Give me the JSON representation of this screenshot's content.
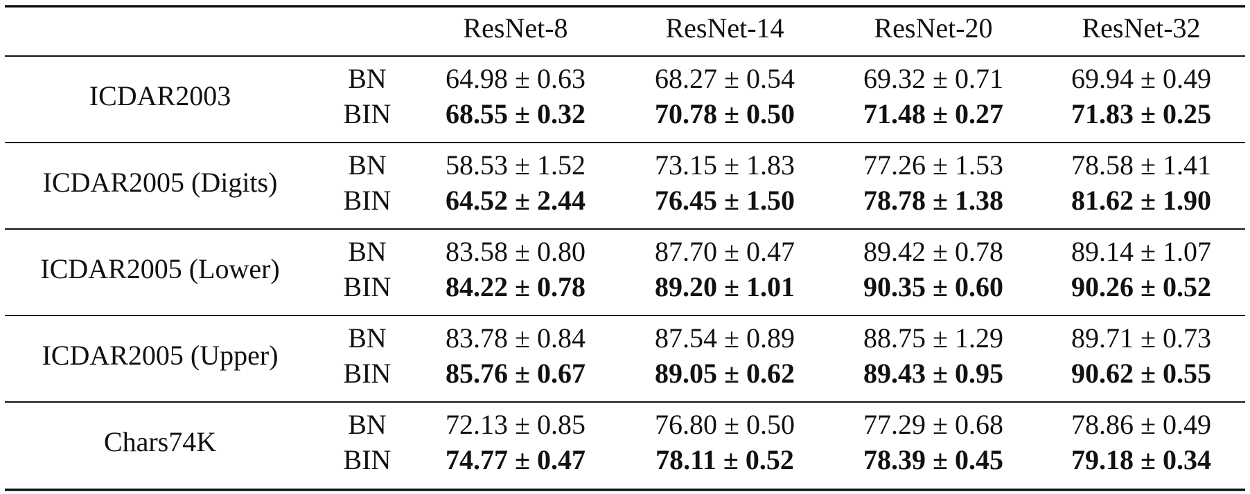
{
  "table": {
    "header": [
      "ResNet-8",
      "ResNet-14",
      "ResNet-20",
      "ResNet-32"
    ],
    "row_groups": [
      {
        "dataset": "ICDAR2003",
        "rows": [
          {
            "method": "BN",
            "values": [
              "64.98 ± 0.63",
              "68.27 ± 0.54",
              "69.32 ± 0.71",
              "69.94 ± 0.49"
            ]
          },
          {
            "method": "BIN",
            "values": [
              "68.55 ± 0.32",
              "70.78 ± 0.50",
              "71.48 ± 0.27",
              "71.83 ± 0.25"
            ]
          }
        ]
      },
      {
        "dataset": "ICDAR2005 (Digits)",
        "rows": [
          {
            "method": "BN",
            "values": [
              "58.53 ± 1.52",
              "73.15 ± 1.83",
              "77.26 ± 1.53",
              "78.58 ± 1.41"
            ]
          },
          {
            "method": "BIN",
            "values": [
              "64.52 ± 2.44",
              "76.45 ± 1.50",
              "78.78 ± 1.38",
              "81.62 ± 1.90"
            ]
          }
        ]
      },
      {
        "dataset": "ICDAR2005 (Lower)",
        "rows": [
          {
            "method": "BN",
            "values": [
              "83.58 ± 0.80",
              "87.70 ± 0.47",
              "89.42 ± 0.78",
              "89.14 ± 1.07"
            ]
          },
          {
            "method": "BIN",
            "values": [
              "84.22 ± 0.78",
              "89.20 ± 1.01",
              "90.35 ± 0.60",
              "90.26 ± 0.52"
            ]
          }
        ]
      },
      {
        "dataset": "ICDAR2005 (Upper)",
        "rows": [
          {
            "method": "BN",
            "values": [
              "83.78 ± 0.84",
              "87.54 ± 0.89",
              "88.75 ± 1.29",
              "89.71 ± 0.73"
            ]
          },
          {
            "method": "BIN",
            "values": [
              "85.76 ± 0.67",
              "89.05 ± 0.62",
              "89.43 ± 0.95",
              "90.62 ± 0.55"
            ]
          }
        ]
      },
      {
        "dataset": "Chars74K",
        "rows": [
          {
            "method": "BN",
            "values": [
              "72.13 ± 0.85",
              "76.80 ± 0.50",
              "77.29 ± 0.68",
              "78.86 ± 0.49"
            ]
          },
          {
            "method": "BIN",
            "values": [
              "74.77 ± 0.47",
              "78.11 ± 0.52",
              "78.39 ± 0.45",
              "79.18 ± 0.34"
            ]
          }
        ]
      }
    ]
  }
}
